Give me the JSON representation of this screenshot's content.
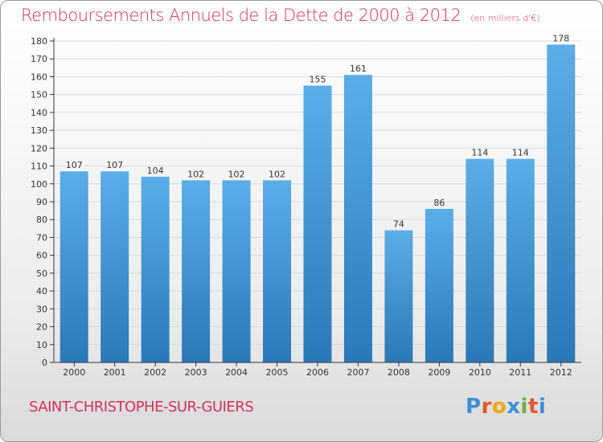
{
  "colors": {
    "title": "#d3325a",
    "bar_top": "#5aaee8",
    "bar_bottom": "#2a78b8",
    "grid": "#d9d9d9",
    "axis": "#333333"
  },
  "header": {
    "title": "Remboursements Annuels de la Dette de 2000 à 2012",
    "subtitle": "(en milliers d'€)"
  },
  "footer": {
    "commune": "SAINT-CHRISTOPHE-SUR-GUIERS",
    "logo_letters": [
      "P",
      "r",
      "o",
      "x",
      "i",
      "t",
      "i"
    ],
    "logo_colors": [
      "#3b8fd6",
      "#e8562a",
      "#f0a500",
      "#3b8fd6",
      "#6cb33f",
      "#e8562a",
      "#3b8fd6"
    ]
  },
  "chart_data": {
    "type": "bar",
    "title": "Remboursements Annuels de la Dette de 2000 à 2012",
    "subtitle": "(en milliers d'€)",
    "xlabel": "",
    "ylabel": "",
    "categories": [
      "2000",
      "2001",
      "2002",
      "2003",
      "2004",
      "2005",
      "2006",
      "2007",
      "2008",
      "2009",
      "2010",
      "2011",
      "2012"
    ],
    "values": [
      107,
      107,
      104,
      102,
      102,
      102,
      155,
      161,
      74,
      86,
      114,
      114,
      178
    ],
    "ylim": [
      0,
      180
    ],
    "ytick_step": 10,
    "grid": true,
    "legend": "none"
  }
}
